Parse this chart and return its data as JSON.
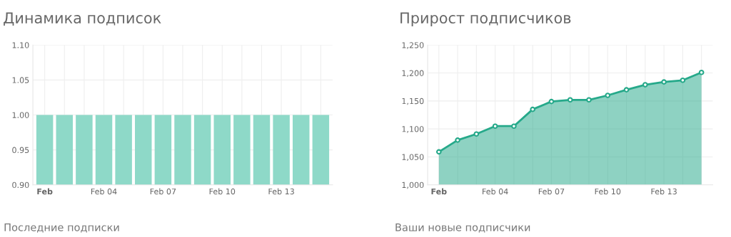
{
  "chart_data": [
    {
      "type": "bar",
      "title": "Динамика подписок",
      "categories": [
        "Feb",
        null,
        null,
        "Feb 04",
        null,
        null,
        "Feb 07",
        null,
        null,
        "Feb 10",
        null,
        null,
        "Feb 13",
        null,
        null
      ],
      "values": [
        1,
        1,
        1,
        1,
        1,
        1,
        1,
        1,
        1,
        1,
        1,
        1,
        1,
        1,
        1
      ],
      "color": "#8ed9c8",
      "ylim": [
        0.9,
        1.1
      ],
      "yticks": [
        {
          "value": 0.9,
          "label": "0.90"
        },
        {
          "value": 0.95,
          "label": "0.95"
        },
        {
          "value": 1.0,
          "label": "1.00"
        },
        {
          "value": 1.05,
          "label": "1.05"
        },
        {
          "value": 1.1,
          "label": "1.10"
        }
      ],
      "grid": true,
      "annotations": [
        "Последние подписки"
      ]
    },
    {
      "type": "area",
      "title": "Прирост подписчиков",
      "categories": [
        "Feb",
        null,
        null,
        "Feb 04",
        null,
        null,
        "Feb 07",
        null,
        null,
        "Feb 10",
        null,
        null,
        "Feb 13",
        null,
        null
      ],
      "series": [
        {
          "color": "#26a98a",
          "values": [
            1059,
            1080,
            1091,
            1105,
            1105,
            1135,
            1149,
            1152,
            1152,
            1160,
            1170,
            1179,
            1184,
            1187,
            1201
          ]
        }
      ],
      "ylim": [
        1000,
        1250
      ],
      "yticks": [
        {
          "value": 1000,
          "label": "1,000"
        },
        {
          "value": 1050,
          "label": "1,050"
        },
        {
          "value": 1100,
          "label": "1,100"
        },
        {
          "value": 1150,
          "label": "1,150"
        },
        {
          "value": 1200,
          "label": "1,200"
        },
        {
          "value": 1250,
          "label": "1,250"
        }
      ],
      "grid": true,
      "marker": "circle",
      "annotations": [
        "Ваши новые подписчики"
      ]
    }
  ]
}
